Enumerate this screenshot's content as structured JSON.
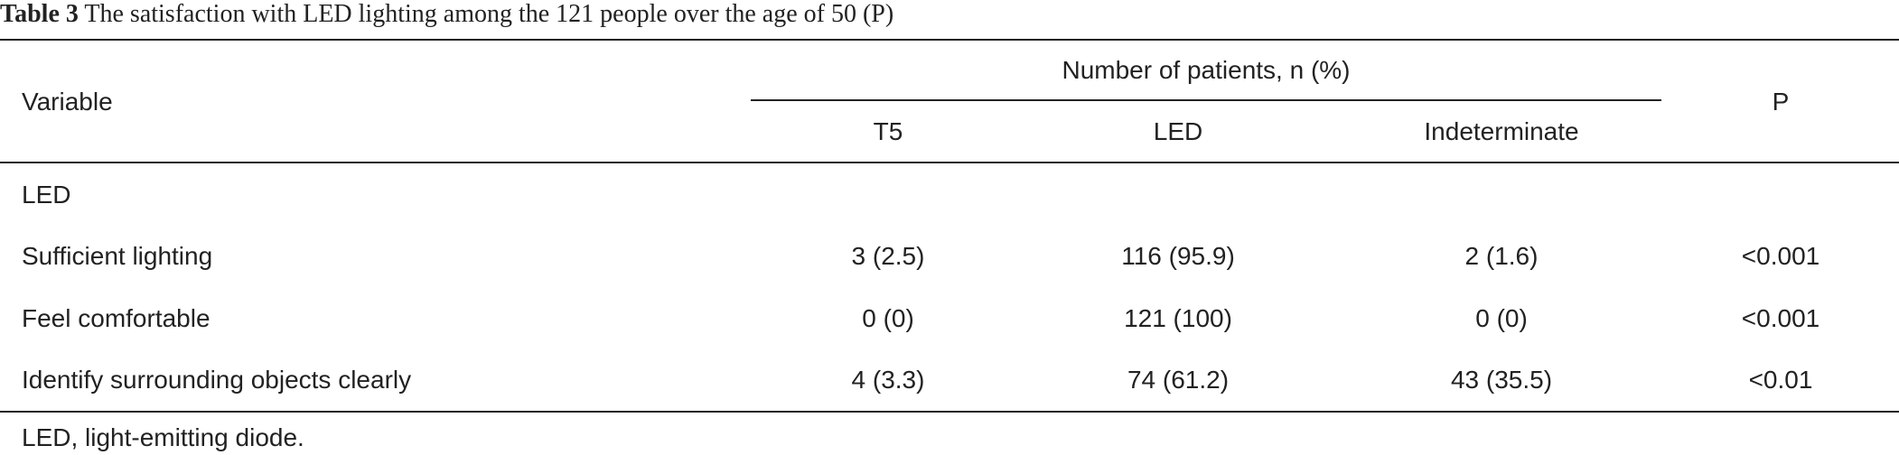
{
  "caption": {
    "label": "Table 3",
    "text": "The satisfaction with LED lighting among the 121 people over the age of 50 (P)"
  },
  "table": {
    "header": {
      "variable": "Variable",
      "group": "Number of patients, n (%)",
      "columns": [
        "T5",
        "LED",
        "Indeterminate"
      ],
      "p": "P"
    },
    "rows": [
      [
        "LED"
      ],
      [
        "Sufficient lighting",
        "3 (2.5)",
        "116 (95.9)",
        "2 (1.6)",
        "<0.001"
      ],
      [
        "Feel comfortable",
        "0 (0)",
        "121 (100)",
        "0 (0)",
        "<0.001"
      ],
      [
        "Identify surrounding objects clearly",
        "4 (3.3)",
        "74 (61.2)",
        "43 (35.5)",
        "<0.01"
      ]
    ],
    "footnote": "LED, light-emitting diode."
  }
}
